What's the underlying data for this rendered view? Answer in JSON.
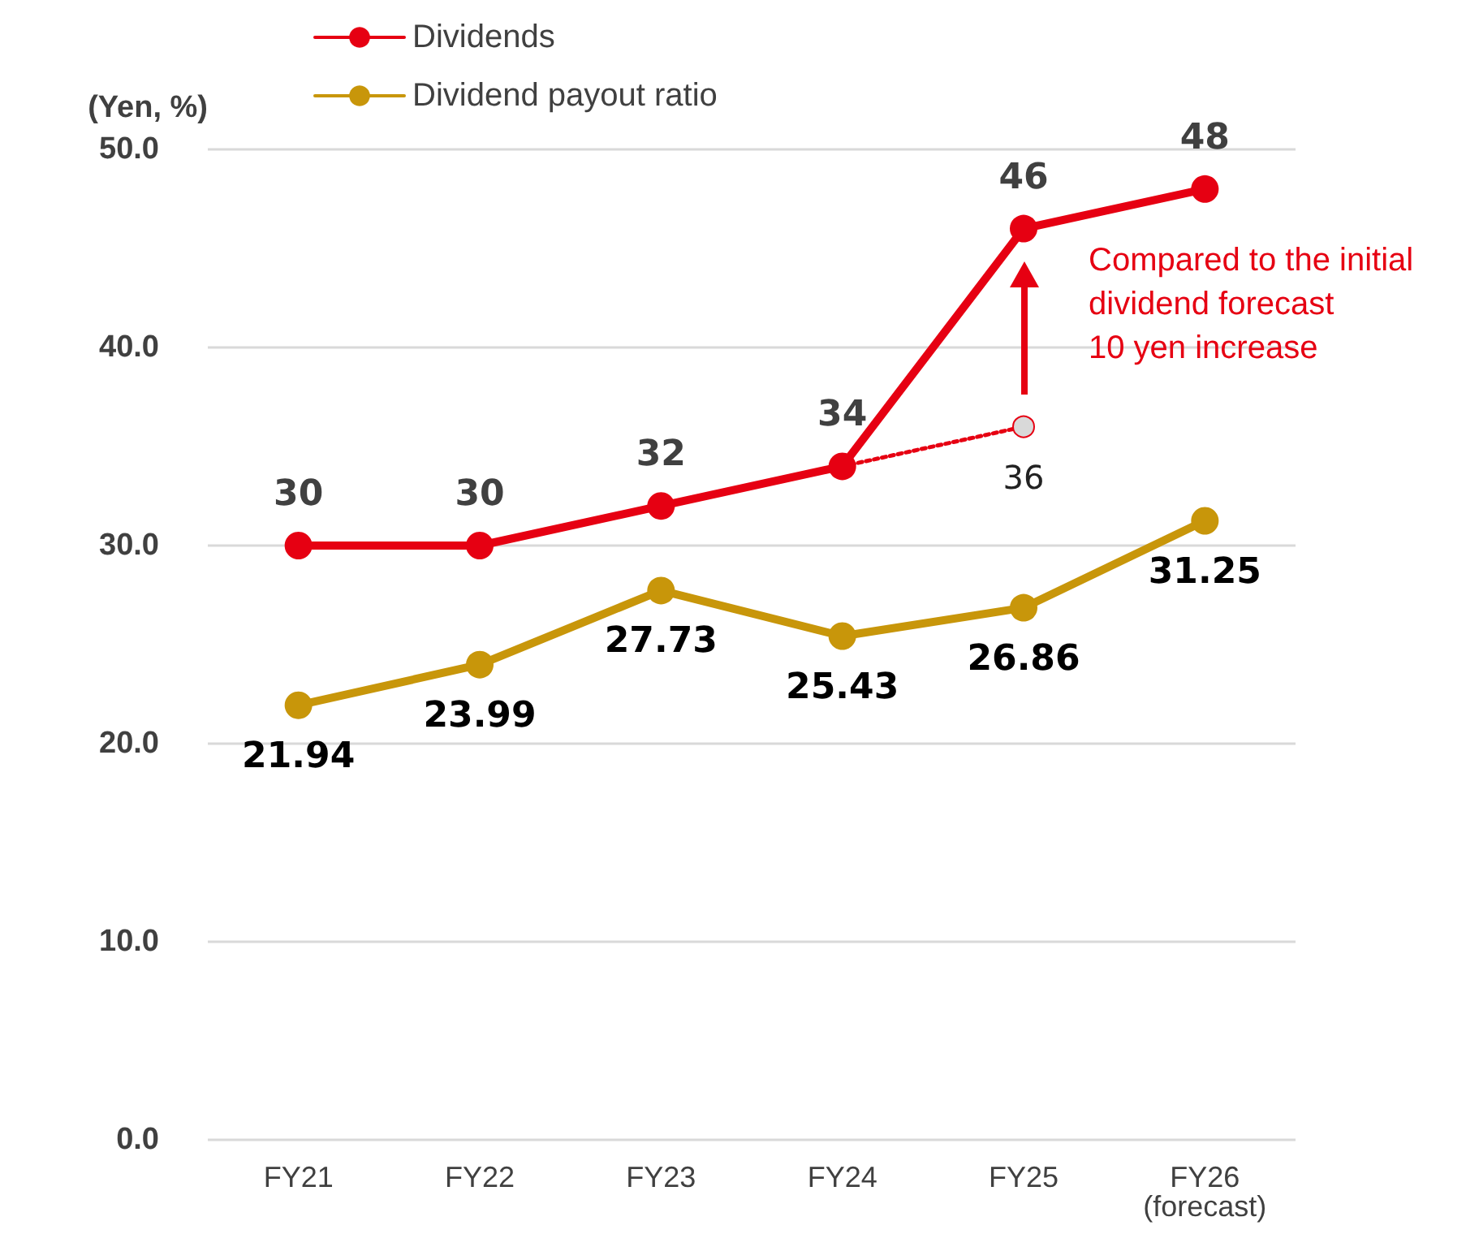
{
  "chart_data": {
    "type": "line",
    "ylabel": "(Yen, %)",
    "categories": [
      "FY21",
      "FY22",
      "FY23",
      "FY24",
      "FY25",
      "FY26\n(forecast)"
    ],
    "series": [
      {
        "name": "Dividends",
        "color": "#e60012",
        "values": [
          30,
          30,
          32,
          34,
          46,
          48
        ]
      },
      {
        "name": "Dividend payout ratio",
        "color": "#c8960a",
        "values": [
          21.94,
          23.99,
          27.73,
          25.43,
          26.86,
          31.25
        ]
      },
      {
        "color": "#e60012",
        "line_style": "dotted",
        "values": [
          null,
          null,
          null,
          34,
          36,
          null
        ],
        "value_labels": [
          null,
          null,
          null,
          null,
          "36",
          null
        ]
      }
    ],
    "ylim": [
      0,
      50
    ],
    "yticks": [
      {
        "value": 0,
        "label": "0.0"
      },
      {
        "value": 10,
        "label": "10.0"
      },
      {
        "value": 20,
        "label": "20.0"
      },
      {
        "value": 30,
        "label": "30.0"
      },
      {
        "value": 40,
        "label": "40.0"
      },
      {
        "value": 50,
        "label": "50.0"
      }
    ],
    "grid": "y",
    "legend": "top left",
    "marker": "circle",
    "line_style": "solid",
    "data_labels": true,
    "annotations": [
      "Compared to the initial\ndividend forecast\n10 yen increase"
    ]
  }
}
